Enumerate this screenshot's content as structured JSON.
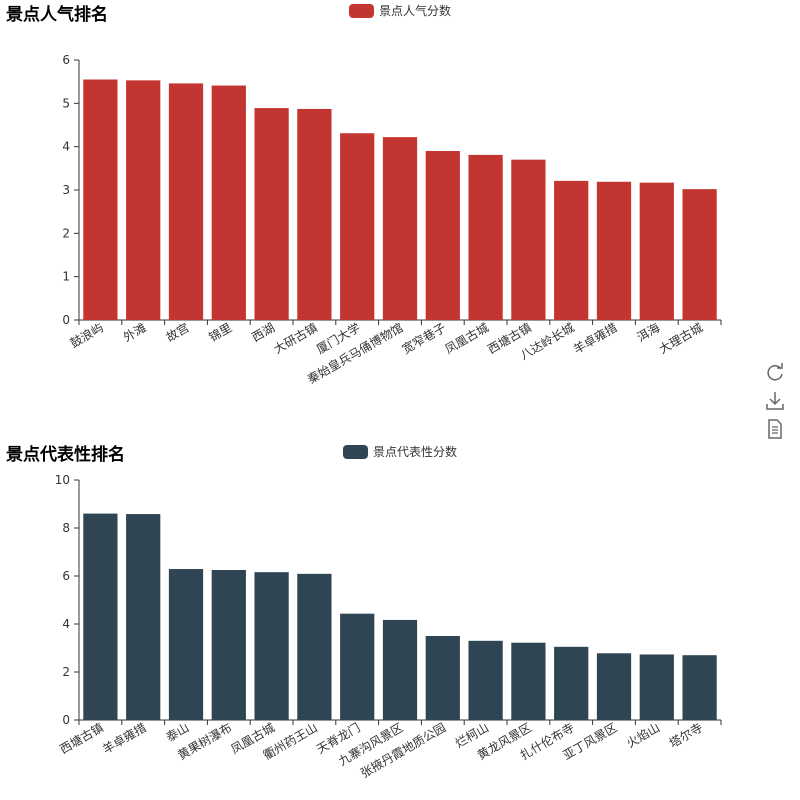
{
  "charts": [
    {
      "title": "景点人气排名",
      "legend": "景点人气分数",
      "color": "#c23531"
    },
    {
      "title": "景点代表性排名",
      "legend": "景点代表性分数",
      "color": "#2f4554"
    }
  ],
  "toolbox": {
    "icons": [
      "restore-icon",
      "save-image-icon",
      "data-view-icon"
    ]
  },
  "chart_data": [
    {
      "type": "bar",
      "title": "景点人气排名",
      "categories": [
        "鼓浪屿",
        "外滩",
        "故宫",
        "锦里",
        "西湖",
        "大研古镇",
        "厦门大学",
        "秦始皇兵马俑博物馆",
        "宽窄巷子",
        "凤凰古城",
        "西塘古镇",
        "八达岭长城",
        "羊卓雍措",
        "洱海",
        "大理古城"
      ],
      "series": [
        {
          "name": "景点人气分数",
          "values": [
            5.55,
            5.53,
            5.46,
            5.41,
            4.89,
            4.87,
            4.31,
            4.22,
            3.9,
            3.81,
            3.7,
            3.21,
            3.19,
            3.17,
            3.02
          ]
        }
      ],
      "ylim": [
        0,
        6
      ],
      "yticks": [
        0,
        1,
        2,
        3,
        4,
        5,
        6
      ],
      "grid": false,
      "legend_position": "top-center"
    },
    {
      "type": "bar",
      "title": "景点代表性排名",
      "categories": [
        "西塘古镇",
        "羊卓雍措",
        "泰山",
        "黄果树瀑布",
        "凤凰古城",
        "衢州药王山",
        "天脊龙门",
        "九寨沟风景区",
        "张掖丹霞地质公园",
        "烂柯山",
        "黄龙风景区",
        "扎什伦布寺",
        "亚丁风景区",
        "火焰山",
        "塔尔寺"
      ],
      "series": [
        {
          "name": "景点代表性分数",
          "values": [
            8.6,
            8.58,
            6.29,
            6.25,
            6.16,
            6.09,
            4.43,
            4.17,
            3.5,
            3.3,
            3.22,
            3.05,
            2.78,
            2.73,
            2.7
          ]
        }
      ],
      "ylim": [
        0,
        10
      ],
      "yticks": [
        0,
        2,
        4,
        6,
        8,
        10
      ],
      "grid": false,
      "legend_position": "top-center"
    }
  ]
}
